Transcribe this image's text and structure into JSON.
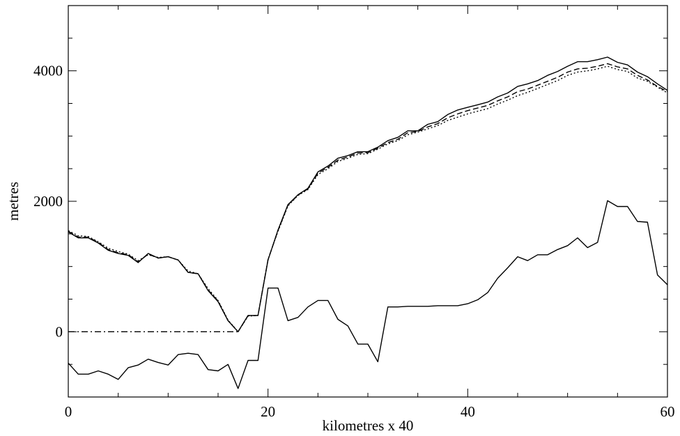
{
  "chart_data": {
    "type": "line",
    "title": "",
    "xlabel": "kilometres x 40",
    "ylabel": "metres",
    "xlim": [
      0,
      60
    ],
    "ylim": [
      -1000,
      5000
    ],
    "x_ticks": [
      "0",
      "20",
      "40",
      "60"
    ],
    "y_ticks": [
      "0",
      "2000",
      "4000"
    ],
    "x_tick_values": [
      0,
      20,
      40,
      60
    ],
    "y_tick_values": [
      0,
      2000,
      4000
    ],
    "grid": false,
    "legend": "none",
    "series": [
      {
        "style": "solid",
        "color": "#000000",
        "x": [
          0,
          1,
          2,
          3,
          4,
          5,
          6,
          7,
          8,
          9,
          10,
          11,
          12,
          13,
          14,
          15,
          16,
          17,
          18,
          19,
          20,
          21,
          22,
          23,
          24,
          25,
          26,
          27,
          28,
          29,
          30,
          31,
          32,
          33,
          34,
          35,
          36,
          37,
          38,
          39,
          40,
          41,
          42,
          43,
          44,
          45,
          46,
          47,
          48,
          49,
          50,
          51,
          52,
          53,
          54,
          55,
          56,
          57,
          58,
          59,
          60
        ],
        "y": [
          1530,
          1440,
          1440,
          1360,
          1250,
          1200,
          1170,
          1060,
          1200,
          1130,
          1150,
          1100,
          910,
          890,
          630,
          460,
          170,
          0,
          250,
          250,
          1100,
          1560,
          1950,
          2100,
          2200,
          2450,
          2540,
          2660,
          2700,
          2760,
          2760,
          2830,
          2930,
          2980,
          3080,
          3080,
          3180,
          3220,
          3330,
          3400,
          3440,
          3480,
          3520,
          3600,
          3660,
          3760,
          3800,
          3850,
          3930,
          3990,
          4070,
          4140,
          4140,
          4170,
          4210,
          4130,
          4090,
          3980,
          3910,
          3800,
          3700
        ]
      },
      {
        "style": "dotted",
        "color": "#000000",
        "x": [
          0,
          1,
          2,
          3,
          4,
          5,
          6,
          7,
          8,
          9,
          10,
          11,
          12,
          13,
          14,
          15,
          16,
          17,
          18,
          19,
          20,
          21,
          22,
          23,
          24,
          25,
          26,
          27,
          28,
          29,
          30,
          31,
          32,
          33,
          34,
          35,
          36,
          37,
          38,
          39,
          40,
          41,
          42,
          43,
          44,
          45,
          46,
          47,
          48,
          49,
          50,
          51,
          52,
          53,
          54,
          55,
          56,
          57,
          58,
          59,
          60
        ],
        "y": [
          1550,
          1470,
          1460,
          1380,
          1280,
          1230,
          1190,
          1090,
          1180,
          1140,
          1150,
          1100,
          930,
          890,
          660,
          480,
          180,
          0,
          240,
          250,
          1110,
          1540,
          1930,
          2090,
          2180,
          2410,
          2500,
          2610,
          2660,
          2720,
          2730,
          2800,
          2880,
          2930,
          3020,
          3060,
          3110,
          3160,
          3240,
          3290,
          3340,
          3380,
          3420,
          3490,
          3550,
          3620,
          3670,
          3730,
          3790,
          3850,
          3930,
          3980,
          4000,
          4030,
          4070,
          4020,
          3990,
          3890,
          3840,
          3750,
          3660
        ]
      },
      {
        "style": "dashed",
        "color": "#000000",
        "x": [
          0,
          1,
          2,
          3,
          4,
          5,
          6,
          7,
          8,
          9,
          10,
          11,
          12,
          13,
          14,
          15,
          16,
          17,
          18,
          19,
          20,
          21,
          22,
          23,
          24,
          25,
          26,
          27,
          28,
          29,
          30,
          31,
          32,
          33,
          34,
          35,
          36,
          37,
          38,
          39,
          40,
          41,
          42,
          43,
          44,
          45,
          46,
          47,
          48,
          49,
          50,
          51,
          52,
          53,
          54,
          55,
          56,
          57,
          58,
          59,
          60
        ],
        "y": [
          1540,
          1450,
          1450,
          1370,
          1260,
          1210,
          1180,
          1070,
          1190,
          1130,
          1150,
          1100,
          910,
          890,
          640,
          470,
          170,
          0,
          245,
          250,
          1105,
          1550,
          1940,
          2095,
          2190,
          2430,
          2520,
          2630,
          2680,
          2740,
          2745,
          2815,
          2900,
          2950,
          3050,
          3070,
          3140,
          3190,
          3280,
          3340,
          3390,
          3430,
          3470,
          3540,
          3600,
          3680,
          3720,
          3780,
          3840,
          3900,
          3980,
          4030,
          4040,
          4070,
          4110,
          4060,
          4030,
          3930,
          3860,
          3760,
          3680
        ]
      },
      {
        "style": "dash-dot",
        "color": "#000000",
        "x": [
          0,
          17
        ],
        "y": [
          0,
          0
        ]
      },
      {
        "style": "solid",
        "color": "#000000",
        "x": [
          0,
          1,
          2,
          3,
          4,
          5,
          6,
          7,
          8,
          9,
          10,
          11,
          12,
          13,
          14,
          15,
          16,
          17,
          18,
          19,
          20,
          21,
          22,
          23,
          24,
          25,
          26,
          27,
          28,
          29,
          30,
          31,
          32,
          33,
          34,
          35,
          36,
          37,
          38,
          39,
          40,
          41,
          42,
          43,
          44,
          45,
          46,
          47,
          48,
          49,
          50,
          51,
          52,
          53,
          54,
          55,
          56,
          57,
          58,
          59,
          60
        ],
        "y": [
          -480,
          -650,
          -650,
          -600,
          -650,
          -730,
          -550,
          -510,
          -420,
          -470,
          -510,
          -350,
          -330,
          -350,
          -580,
          -600,
          -500,
          -870,
          -440,
          -440,
          670,
          670,
          170,
          220,
          380,
          480,
          480,
          190,
          90,
          -190,
          -190,
          -460,
          380,
          380,
          390,
          390,
          390,
          400,
          400,
          400,
          430,
          490,
          600,
          820,
          980,
          1150,
          1090,
          1180,
          1180,
          1260,
          1320,
          1440,
          1290,
          1370,
          2010,
          1920,
          1920,
          1690,
          1680,
          870,
          720
        ]
      }
    ]
  }
}
